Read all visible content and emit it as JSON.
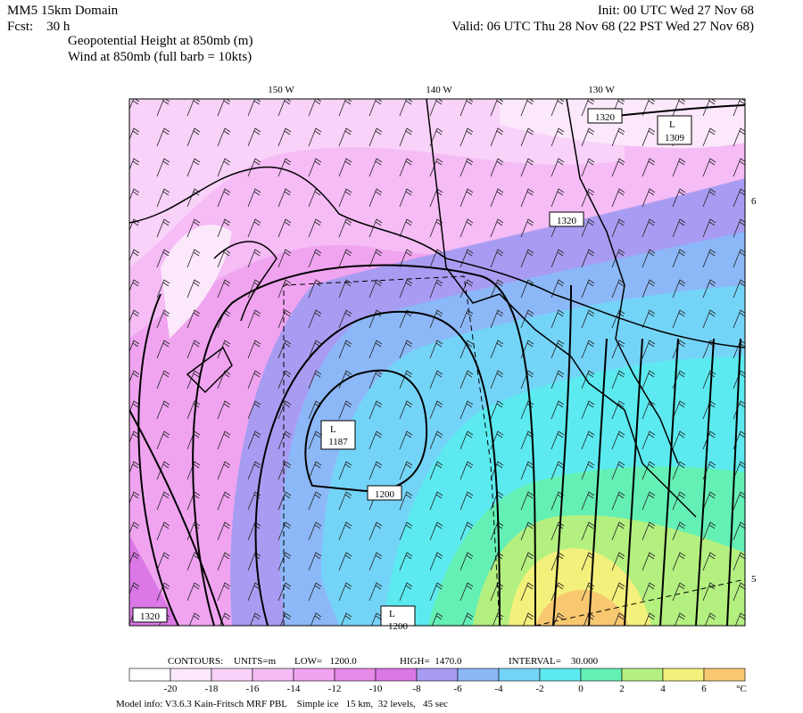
{
  "header": {
    "model": "MM5 15km Domain",
    "init": "Init: 00 UTC Wed 27 Nov 68",
    "fcst": "Fcst:    30 h",
    "valid": "Valid: 06 UTC Thu 28 Nov 68 (22 PST Wed 27 Nov 68)",
    "field1": "Geopotential Height at 850mb (m)",
    "field2": "Wind at 850mb (full barb = 10kts)"
  },
  "map": {
    "longitude_labels": [
      "150 W",
      "140 W",
      "130 W"
    ],
    "latitude_labels": [
      "6",
      "5"
    ],
    "contour_labels": [
      "1320",
      "1320",
      "1200",
      "1320"
    ],
    "lows": [
      {
        "marker": "L",
        "value": "1309"
      },
      {
        "marker": "L",
        "value": "1187"
      },
      {
        "marker": "L",
        "value": "1200"
      }
    ]
  },
  "contours_info": {
    "label": "CONTOURS:",
    "units": "UNITS=m",
    "low": "LOW=   1200.0",
    "high": "HIGH=  1470.0",
    "interval": "INTERVAL=    30.000"
  },
  "legend": {
    "ticks": [
      "-20",
      "-18",
      "-16",
      "-14",
      "-12",
      "-10",
      "-8",
      "-6",
      "-4",
      "-2",
      "0",
      "2",
      "4",
      "6"
    ],
    "unit": "°C",
    "colors": [
      "#ffffff",
      "#fbe8fb",
      "#f8d2f8",
      "#f5bcf5",
      "#f0a4f0",
      "#e88ae8",
      "#dc78e6",
      "#a89cf2",
      "#8cb8f8",
      "#74d4f8",
      "#5ceaf0",
      "#64f0b4",
      "#b4f080",
      "#f4f07c",
      "#f8c870"
    ]
  },
  "footer": "Model info: V3.6.3 Kain-Fritsch MRF PBL    Simple ice   15 km,  32 levels,   45 sec"
}
